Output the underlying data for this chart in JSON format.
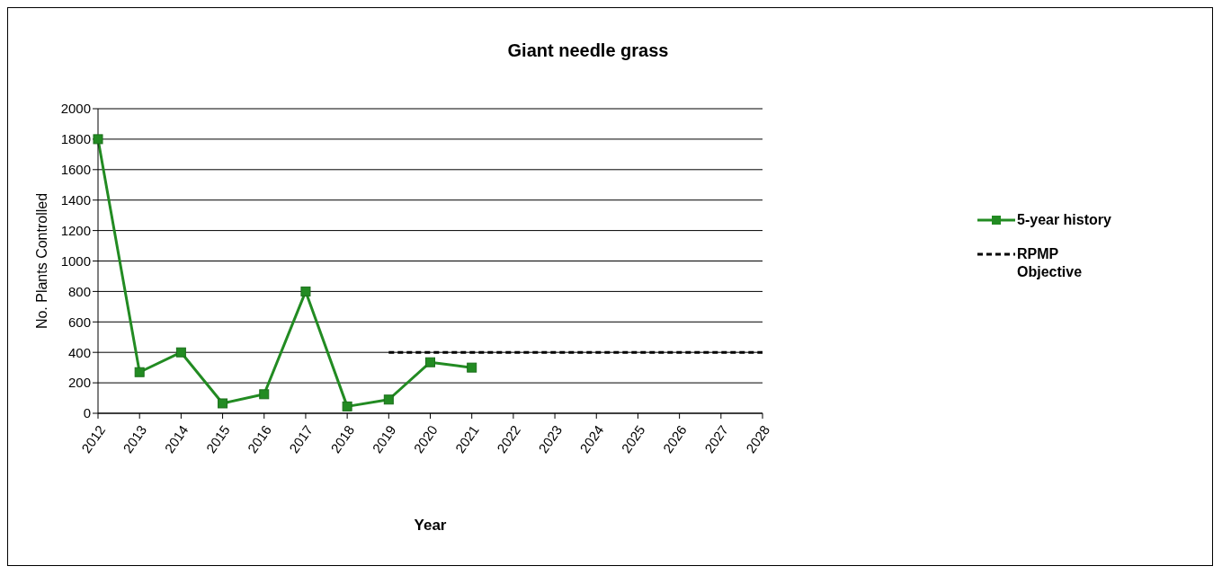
{
  "chart_data": {
    "type": "line",
    "title": "Giant needle grass",
    "xlabel": "Year",
    "ylabel": "No. Plants Controlled",
    "categories": [
      "2012",
      "2013",
      "2014",
      "2015",
      "2016",
      "2017",
      "2018",
      "2019",
      "2020",
      "2021",
      "2022",
      "2023",
      "2024",
      "2025",
      "2026",
      "2027",
      "2028"
    ],
    "series": [
      {
        "name": "5-year history",
        "color": "#228b22",
        "marker": "square",
        "line_style": "solid",
        "values": [
          1800,
          270,
          400,
          65,
          125,
          800,
          45,
          90,
          335,
          300,
          null,
          null,
          null,
          null,
          null,
          null,
          null
        ]
      },
      {
        "name": "RPMP Objective",
        "color": "#000000",
        "marker": "none",
        "line_style": "dashed",
        "values": [
          null,
          null,
          null,
          null,
          null,
          null,
          null,
          400,
          400,
          400,
          400,
          400,
          400,
          400,
          400,
          400,
          400
        ]
      }
    ],
    "ylim": [
      0,
      2000
    ],
    "yticks": [
      0,
      200,
      400,
      600,
      800,
      1000,
      1200,
      1400,
      1600,
      1800,
      2000
    ],
    "grid": "y",
    "legend": "right"
  }
}
